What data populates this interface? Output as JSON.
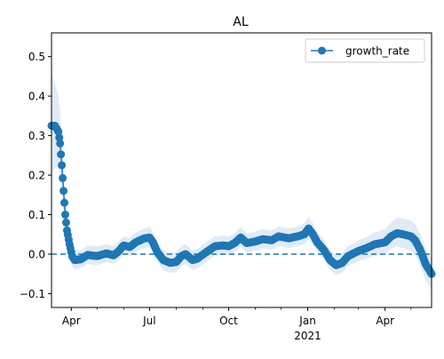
{
  "chart_data": {
    "type": "line",
    "title": "AL",
    "xlabel": "",
    "ylabel": "",
    "x_start": "2020-03-09",
    "x_end": "2021-05-25",
    "ylim": [
      -0.135,
      0.56
    ],
    "yticks": [
      -0.1,
      0.0,
      0.1,
      0.2,
      0.3,
      0.4,
      0.5
    ],
    "ytick_labels": [
      "−0.1",
      "0.0",
      "0.1",
      "0.2",
      "0.3",
      "0.4",
      "0.5"
    ],
    "xticks_major": [
      {
        "date": "2020-04-01",
        "label": "Apr",
        "sublabel": ""
      },
      {
        "date": "2020-07-01",
        "label": "Jul",
        "sublabel": ""
      },
      {
        "date": "2020-10-01",
        "label": "Oct",
        "sublabel": ""
      },
      {
        "date": "2021-01-01",
        "label": "Jan",
        "sublabel": "2021"
      },
      {
        "date": "2021-04-01",
        "label": "Apr",
        "sublabel": ""
      }
    ],
    "xticks_minor": [
      "2020-05-01",
      "2020-06-01",
      "2020-08-01",
      "2020-09-01",
      "2020-11-01",
      "2020-12-01",
      "2021-02-01",
      "2021-03-01",
      "2021-05-01"
    ],
    "reference_line": {
      "y": 0.0,
      "style": "dashed",
      "color": "#1f77b4"
    },
    "legend": {
      "position": "top-right",
      "entries": [
        "growth_rate"
      ]
    },
    "grid": false,
    "series": [
      {
        "name": "growth_rate",
        "color": "#1f77b4",
        "band_color": "#c6dbef",
        "marker": "circle",
        "keypoints": [
          {
            "date": "2020-03-09",
            "y": 0.325,
            "lo": 0.2,
            "hi": 0.46
          },
          {
            "date": "2020-03-13",
            "y": 0.325,
            "lo": 0.22,
            "hi": 0.43
          },
          {
            "date": "2020-03-17",
            "y": 0.31,
            "lo": 0.22,
            "hi": 0.4
          },
          {
            "date": "2020-03-19",
            "y": 0.28,
            "lo": 0.2,
            "hi": 0.36
          },
          {
            "date": "2020-03-21",
            "y": 0.225,
            "lo": 0.16,
            "hi": 0.29
          },
          {
            "date": "2020-03-23",
            "y": 0.16,
            "lo": 0.11,
            "hi": 0.21
          },
          {
            "date": "2020-03-25",
            "y": 0.1,
            "lo": 0.06,
            "hi": 0.14
          },
          {
            "date": "2020-03-27",
            "y": 0.06,
            "lo": 0.03,
            "hi": 0.09
          },
          {
            "date": "2020-03-30",
            "y": 0.025,
            "lo": 0.0,
            "hi": 0.05
          },
          {
            "date": "2020-04-02",
            "y": -0.005,
            "lo": -0.03,
            "hi": 0.02
          },
          {
            "date": "2020-04-05",
            "y": -0.015,
            "lo": -0.04,
            "hi": 0.01
          },
          {
            "date": "2020-04-12",
            "y": -0.013,
            "lo": -0.035,
            "hi": 0.01
          },
          {
            "date": "2020-04-20",
            "y": -0.002,
            "lo": -0.025,
            "hi": 0.022
          },
          {
            "date": "2020-05-01",
            "y": -0.005,
            "lo": -0.028,
            "hi": 0.02
          },
          {
            "date": "2020-05-12",
            "y": 0.002,
            "lo": -0.02,
            "hi": 0.025
          },
          {
            "date": "2020-05-20",
            "y": -0.003,
            "lo": -0.025,
            "hi": 0.02
          },
          {
            "date": "2020-05-25",
            "y": 0.005,
            "lo": -0.018,
            "hi": 0.03
          },
          {
            "date": "2020-06-01",
            "y": 0.022,
            "lo": 0.0,
            "hi": 0.045
          },
          {
            "date": "2020-06-08",
            "y": 0.018,
            "lo": -0.005,
            "hi": 0.042
          },
          {
            "date": "2020-06-15",
            "y": 0.03,
            "lo": 0.007,
            "hi": 0.055
          },
          {
            "date": "2020-06-25",
            "y": 0.04,
            "lo": 0.015,
            "hi": 0.065
          },
          {
            "date": "2020-07-01",
            "y": 0.042,
            "lo": 0.017,
            "hi": 0.07
          },
          {
            "date": "2020-07-05",
            "y": 0.03,
            "lo": 0.006,
            "hi": 0.056
          },
          {
            "date": "2020-07-10",
            "y": 0.005,
            "lo": -0.02,
            "hi": 0.03
          },
          {
            "date": "2020-07-17",
            "y": -0.015,
            "lo": -0.04,
            "hi": 0.01
          },
          {
            "date": "2020-07-25",
            "y": -0.022,
            "lo": -0.048,
            "hi": 0.004
          },
          {
            "date": "2020-08-01",
            "y": -0.02,
            "lo": -0.046,
            "hi": 0.006
          },
          {
            "date": "2020-08-07",
            "y": -0.005,
            "lo": -0.03,
            "hi": 0.02
          },
          {
            "date": "2020-08-12",
            "y": 0.0,
            "lo": -0.025,
            "hi": 0.025
          },
          {
            "date": "2020-08-20",
            "y": -0.015,
            "lo": -0.04,
            "hi": 0.01
          },
          {
            "date": "2020-08-25",
            "y": -0.012,
            "lo": -0.037,
            "hi": 0.013
          },
          {
            "date": "2020-09-05",
            "y": 0.005,
            "lo": -0.02,
            "hi": 0.03
          },
          {
            "date": "2020-09-15",
            "y": 0.02,
            "lo": -0.004,
            "hi": 0.045
          },
          {
            "date": "2020-09-25",
            "y": 0.022,
            "lo": -0.002,
            "hi": 0.047
          },
          {
            "date": "2020-10-01",
            "y": 0.02,
            "lo": -0.004,
            "hi": 0.045
          },
          {
            "date": "2020-10-08",
            "y": 0.028,
            "lo": 0.004,
            "hi": 0.053
          },
          {
            "date": "2020-10-15",
            "y": 0.042,
            "lo": 0.018,
            "hi": 0.068
          },
          {
            "date": "2020-10-22",
            "y": 0.028,
            "lo": 0.004,
            "hi": 0.053
          },
          {
            "date": "2020-11-01",
            "y": 0.032,
            "lo": 0.008,
            "hi": 0.057
          },
          {
            "date": "2020-11-10",
            "y": 0.038,
            "lo": 0.014,
            "hi": 0.063
          },
          {
            "date": "2020-11-20",
            "y": 0.035,
            "lo": 0.011,
            "hi": 0.06
          },
          {
            "date": "2020-11-28",
            "y": 0.045,
            "lo": 0.02,
            "hi": 0.07
          },
          {
            "date": "2020-12-10",
            "y": 0.04,
            "lo": 0.015,
            "hi": 0.065
          },
          {
            "date": "2020-12-20",
            "y": 0.045,
            "lo": 0.02,
            "hi": 0.07
          },
          {
            "date": "2020-12-28",
            "y": 0.05,
            "lo": 0.025,
            "hi": 0.078
          },
          {
            "date": "2021-01-02",
            "y": 0.065,
            "lo": 0.038,
            "hi": 0.095
          },
          {
            "date": "2021-01-07",
            "y": 0.05,
            "lo": 0.024,
            "hi": 0.078
          },
          {
            "date": "2021-01-12",
            "y": 0.03,
            "lo": 0.005,
            "hi": 0.056
          },
          {
            "date": "2021-01-20",
            "y": 0.01,
            "lo": -0.015,
            "hi": 0.036
          },
          {
            "date": "2021-01-27",
            "y": -0.015,
            "lo": -0.04,
            "hi": 0.01
          },
          {
            "date": "2021-02-03",
            "y": -0.028,
            "lo": -0.053,
            "hi": -0.003
          },
          {
            "date": "2021-02-10",
            "y": -0.022,
            "lo": -0.047,
            "hi": 0.003
          },
          {
            "date": "2021-02-17",
            "y": -0.005,
            "lo": -0.03,
            "hi": 0.02
          },
          {
            "date": "2021-03-01",
            "y": 0.008,
            "lo": -0.018,
            "hi": 0.035
          },
          {
            "date": "2021-03-10",
            "y": 0.015,
            "lo": -0.012,
            "hi": 0.043
          },
          {
            "date": "2021-03-20",
            "y": 0.025,
            "lo": -0.004,
            "hi": 0.055
          },
          {
            "date": "2021-04-01",
            "y": 0.03,
            "lo": 0.0,
            "hi": 0.063
          },
          {
            "date": "2021-04-08",
            "y": 0.045,
            "lo": 0.013,
            "hi": 0.08
          },
          {
            "date": "2021-04-15",
            "y": 0.053,
            "lo": 0.02,
            "hi": 0.093
          },
          {
            "date": "2021-04-22",
            "y": 0.05,
            "lo": 0.015,
            "hi": 0.09
          },
          {
            "date": "2021-05-01",
            "y": 0.045,
            "lo": 0.008,
            "hi": 0.085
          },
          {
            "date": "2021-05-06",
            "y": 0.035,
            "lo": -0.003,
            "hi": 0.075
          },
          {
            "date": "2021-05-12",
            "y": 0.01,
            "lo": -0.03,
            "hi": 0.05
          },
          {
            "date": "2021-05-18",
            "y": -0.025,
            "lo": -0.065,
            "hi": 0.015
          },
          {
            "date": "2021-05-25",
            "y": -0.05,
            "lo": -0.09,
            "hi": -0.01
          }
        ]
      }
    ]
  }
}
